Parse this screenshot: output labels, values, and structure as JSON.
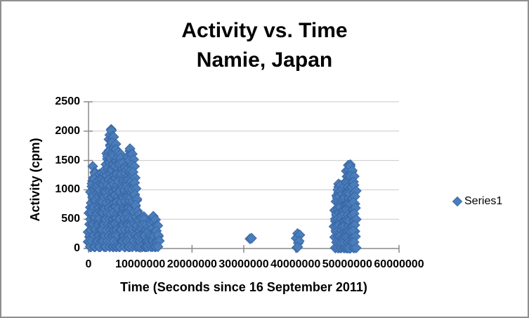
{
  "chart_data": {
    "type": "scatter",
    "title": "Activity vs. Time",
    "subtitle": "Namie, Japan",
    "xlabel": "Time (Seconds since 16 September 2011)",
    "ylabel": "Activity (cpm)",
    "xlim": [
      0,
      60000000
    ],
    "ylim": [
      0,
      2500
    ],
    "x_ticks": [
      0,
      10000000,
      20000000,
      30000000,
      40000000,
      50000000,
      60000000
    ],
    "x_tick_labels": [
      "0",
      "10000000",
      "20000000",
      "30000000",
      "40000000",
      "50000000",
      "60000000"
    ],
    "y_ticks": [
      0,
      500,
      1000,
      1500,
      2000,
      2500
    ],
    "y_tick_labels": [
      "0",
      "500",
      "1000",
      "1500",
      "2000",
      "2500"
    ],
    "grid": true,
    "legend_position": "right",
    "colors": {
      "gridline": "#c9c9c9",
      "axis": "#8a8a8a",
      "text": "#000000",
      "frame_border": "#8f8f8f"
    },
    "series": [
      {
        "name": "Series1",
        "marker": "diamond",
        "fill": "#4A7EBB",
        "stroke": "#3A67A6",
        "point_columns_format": [
          "x_seconds",
          "y_min_cpm",
          "y_max_cpm"
        ],
        "point_columns": [
          [
            50000,
            30,
            280
          ],
          [
            350000,
            30,
            700
          ],
          [
            650000,
            30,
            1150
          ],
          [
            950000,
            30,
            1400
          ],
          [
            1250000,
            30,
            1280
          ],
          [
            1550000,
            30,
            1020
          ],
          [
            1850000,
            30,
            1150
          ],
          [
            2150000,
            30,
            1270
          ],
          [
            2450000,
            30,
            1290
          ],
          [
            2750000,
            30,
            1180
          ],
          [
            3050000,
            30,
            1270
          ],
          [
            3350000,
            30,
            1430
          ],
          [
            3650000,
            30,
            1620
          ],
          [
            3950000,
            30,
            1860
          ],
          [
            4250000,
            30,
            2030
          ],
          [
            4550000,
            30,
            2010
          ],
          [
            4850000,
            30,
            1900
          ],
          [
            5150000,
            30,
            1780
          ],
          [
            5450000,
            30,
            1690
          ],
          [
            5750000,
            30,
            1640
          ],
          [
            6050000,
            30,
            1610
          ],
          [
            6350000,
            30,
            1540
          ],
          [
            6650000,
            30,
            1460
          ],
          [
            6950000,
            30,
            1330
          ],
          [
            7250000,
            30,
            1380
          ],
          [
            7550000,
            30,
            1530
          ],
          [
            7850000,
            30,
            1660
          ],
          [
            8150000,
            30,
            1700
          ],
          [
            8450000,
            30,
            1610
          ],
          [
            8750000,
            30,
            1400
          ],
          [
            9050000,
            30,
            1120
          ],
          [
            9350000,
            30,
            840
          ],
          [
            9650000,
            30,
            580
          ],
          [
            9950000,
            30,
            470
          ],
          [
            10250000,
            30,
            520
          ],
          [
            10550000,
            30,
            545
          ],
          [
            10850000,
            30,
            500
          ],
          [
            11150000,
            30,
            410
          ],
          [
            11450000,
            30,
            310
          ],
          [
            11750000,
            30,
            370
          ],
          [
            12050000,
            30,
            460
          ],
          [
            12350000,
            30,
            520
          ],
          [
            12650000,
            30,
            550
          ],
          [
            12950000,
            30,
            490
          ],
          [
            13250000,
            30,
            390
          ],
          [
            13550000,
            30,
            230
          ],
          [
            40400000,
            15,
            255
          ],
          [
            40700000,
            25,
            230
          ],
          [
            47700000,
            10,
            650
          ],
          [
            47950000,
            10,
            900
          ],
          [
            48200000,
            10,
            1050
          ],
          [
            48450000,
            10,
            1100
          ],
          [
            48700000,
            10,
            1080
          ],
          [
            48950000,
            10,
            1010
          ],
          [
            49200000,
            10,
            930
          ],
          [
            49450000,
            10,
            840
          ],
          [
            49700000,
            10,
            1150
          ],
          [
            49950000,
            10,
            1320
          ],
          [
            50200000,
            5,
            1420
          ],
          [
            50450000,
            5,
            1430
          ],
          [
            50700000,
            5,
            1400
          ],
          [
            50950000,
            10,
            1330
          ],
          [
            51200000,
            10,
            1230
          ],
          [
            51450000,
            10,
            1080
          ]
        ],
        "points": [
          [
            31200000,
            165
          ],
          [
            31500000,
            175
          ]
        ]
      }
    ]
  }
}
